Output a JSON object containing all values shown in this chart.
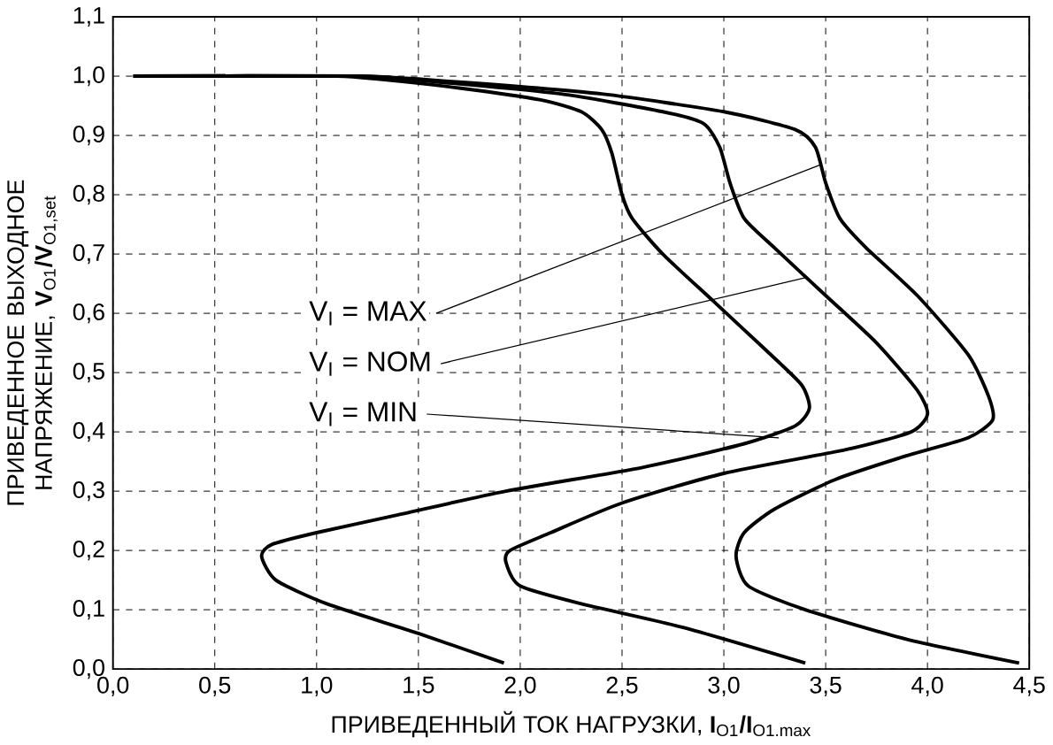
{
  "chart_data": {
    "type": "line",
    "xlabel": "ПРИВЕДЕННЫЙ ТОК НАГРУЗКИ, **I**$_{O1}$**/I**$_{O1.max}$",
    "ylabel": "ПРИВЕДЕННОЕ ВЫХОДНОЕ НАПРЯЖЕНИЕ, **V**$_{O1}$**/V**$_{O1,set}$",
    "xlim": [
      0,
      4.5
    ],
    "ylim": [
      0,
      1.1
    ],
    "xticks": [
      {
        "value": 0,
        "label": "0,0"
      },
      {
        "value": 0.5,
        "label": "0,5"
      },
      {
        "value": 1,
        "label": "1,0"
      },
      {
        "value": 1.5,
        "label": "1,5"
      },
      {
        "value": 2,
        "label": "2,0"
      },
      {
        "value": 2.5,
        "label": "2,5"
      },
      {
        "value": 3,
        "label": "3,0"
      },
      {
        "value": 3.5,
        "label": "3,5"
      },
      {
        "value": 4,
        "label": "4,0"
      },
      {
        "value": 4.5,
        "label": "4,5"
      }
    ],
    "yticks": [
      {
        "value": 0,
        "label": "0,0"
      },
      {
        "value": 0.1,
        "label": "0,1"
      },
      {
        "value": 0.2,
        "label": "0,2"
      },
      {
        "value": 0.3,
        "label": "0,3"
      },
      {
        "value": 0.4,
        "label": "0,4"
      },
      {
        "value": 0.5,
        "label": "0,5"
      },
      {
        "value": 0.6,
        "label": "0,6"
      },
      {
        "value": 0.7,
        "label": "0,7"
      },
      {
        "value": 0.8,
        "label": "0,8"
      },
      {
        "value": 0.9,
        "label": "0,9"
      },
      {
        "value": 1,
        "label": "1,0"
      },
      {
        "value": 1.1,
        "label": "1,1"
      }
    ],
    "grid": true,
    "line_style": "solid",
    "series": [
      {
        "color": "#000000",
        "x": [
          0.1,
          0.6,
          1.1,
          1.3,
          1.7,
          2.1,
          2.3,
          2.4,
          2.45,
          2.5,
          2.55,
          2.7,
          2.95,
          3.2,
          3.38,
          3.42,
          3.35,
          3.1,
          2.6,
          1.93,
          1.4,
          1.0,
          0.78,
          0.73,
          0.8,
          1.05,
          1.5,
          1.92
        ],
        "values": [
          1.0,
          1.0,
          1.0,
          0.995,
          0.98,
          0.96,
          0.94,
          0.91,
          0.87,
          0.8,
          0.76,
          0.7,
          0.62,
          0.54,
          0.48,
          0.44,
          0.41,
          0.38,
          0.34,
          0.3,
          0.26,
          0.23,
          0.21,
          0.19,
          0.15,
          0.11,
          0.06,
          0.01
        ]
      },
      {
        "color": "#000000",
        "x": [
          0.1,
          1.2,
          1.6,
          2.2,
          2.7,
          2.9,
          2.98,
          3.03,
          3.1,
          3.25,
          3.5,
          3.75,
          3.95,
          4.0,
          3.92,
          3.6,
          3.0,
          2.5,
          2.15,
          1.95,
          1.93,
          2.0,
          2.3,
          2.8,
          3.4
        ],
        "values": [
          1.0,
          1.0,
          0.99,
          0.97,
          0.94,
          0.92,
          0.88,
          0.82,
          0.76,
          0.71,
          0.63,
          0.55,
          0.47,
          0.43,
          0.4,
          0.37,
          0.33,
          0.28,
          0.23,
          0.2,
          0.18,
          0.14,
          0.11,
          0.07,
          0.01
        ]
      },
      {
        "color": "#000000",
        "x": [
          0.1,
          1.2,
          1.7,
          2.4,
          3.0,
          3.35,
          3.45,
          3.5,
          3.57,
          3.7,
          3.95,
          4.2,
          4.3,
          4.32,
          4.2,
          3.9,
          3.55,
          3.25,
          3.1,
          3.06,
          3.12,
          3.4,
          3.9,
          4.45
        ],
        "values": [
          1.0,
          1.0,
          0.99,
          0.97,
          0.94,
          0.91,
          0.88,
          0.82,
          0.76,
          0.71,
          0.63,
          0.53,
          0.46,
          0.42,
          0.39,
          0.36,
          0.32,
          0.27,
          0.23,
          0.19,
          0.14,
          0.1,
          0.05,
          0.01
        ]
      }
    ],
    "annotations": [
      {
        "text": "V$_{I}$ = MAX",
        "x": 3.47,
        "y": 0.85
      },
      {
        "text": "V$_{I}$ = NOM",
        "x": 3.4,
        "y": 0.66
      },
      {
        "text": "V$_{I}$ = MIN",
        "x": 3.27,
        "y": 0.39
      }
    ]
  }
}
